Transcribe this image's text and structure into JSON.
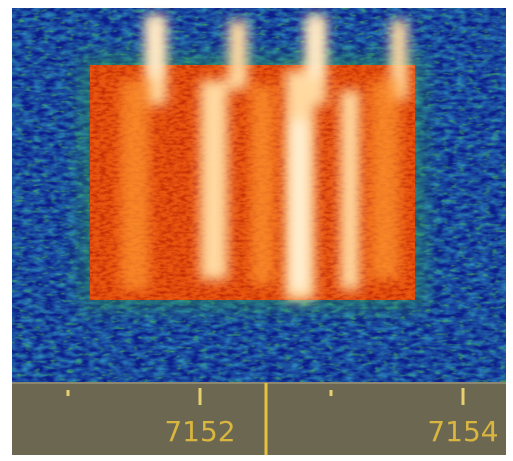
{
  "scale": {
    "labels": [
      "7152",
      "7154"
    ]
  }
}
